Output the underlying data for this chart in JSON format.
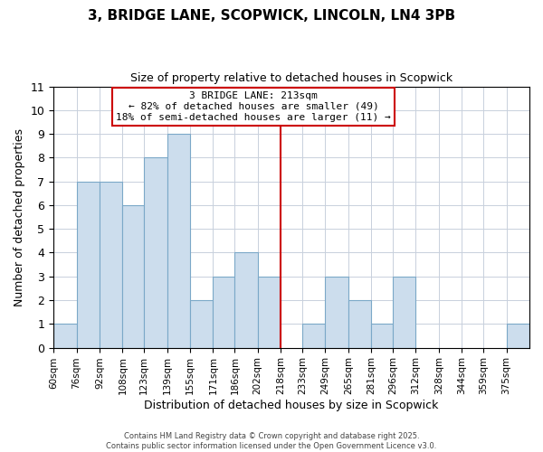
{
  "title": "3, BRIDGE LANE, SCOPWICK, LINCOLN, LN4 3PB",
  "subtitle": "Size of property relative to detached houses in Scopwick",
  "xlabel": "Distribution of detached houses by size in Scopwick",
  "ylabel": "Number of detached properties",
  "bin_labels": [
    "60sqm",
    "76sqm",
    "92sqm",
    "108sqm",
    "123sqm",
    "139sqm",
    "155sqm",
    "171sqm",
    "186sqm",
    "202sqm",
    "218sqm",
    "233sqm",
    "249sqm",
    "265sqm",
    "281sqm",
    "296sqm",
    "312sqm",
    "328sqm",
    "344sqm",
    "359sqm",
    "375sqm"
  ],
  "bin_edges": [
    60,
    76,
    92,
    108,
    123,
    139,
    155,
    171,
    186,
    202,
    218,
    233,
    249,
    265,
    281,
    296,
    312,
    328,
    344,
    359,
    375,
    391
  ],
  "counts": [
    1,
    7,
    7,
    6,
    8,
    9,
    2,
    3,
    4,
    3,
    0,
    1,
    3,
    2,
    1,
    3,
    0,
    0,
    0,
    0,
    1
  ],
  "ylim": [
    0,
    11
  ],
  "yticks": [
    0,
    1,
    2,
    3,
    4,
    5,
    6,
    7,
    8,
    9,
    10,
    11
  ],
  "bar_color": "#ccdded",
  "bar_edge_color": "#7ba8c8",
  "vline_x": 218,
  "vline_color": "#cc0000",
  "annotation_title": "3 BRIDGE LANE: 213sqm",
  "annotation_line1": "← 82% of detached houses are smaller (49)",
  "annotation_line2": "18% of semi-detached houses are larger (11) →",
  "annotation_box_edge": "#cc0000",
  "footer1": "Contains HM Land Registry data © Crown copyright and database right 2025.",
  "footer2": "Contains public sector information licensed under the Open Government Licence v3.0.",
  "background_color": "#ffffff",
  "grid_color": "#c8d0dc"
}
